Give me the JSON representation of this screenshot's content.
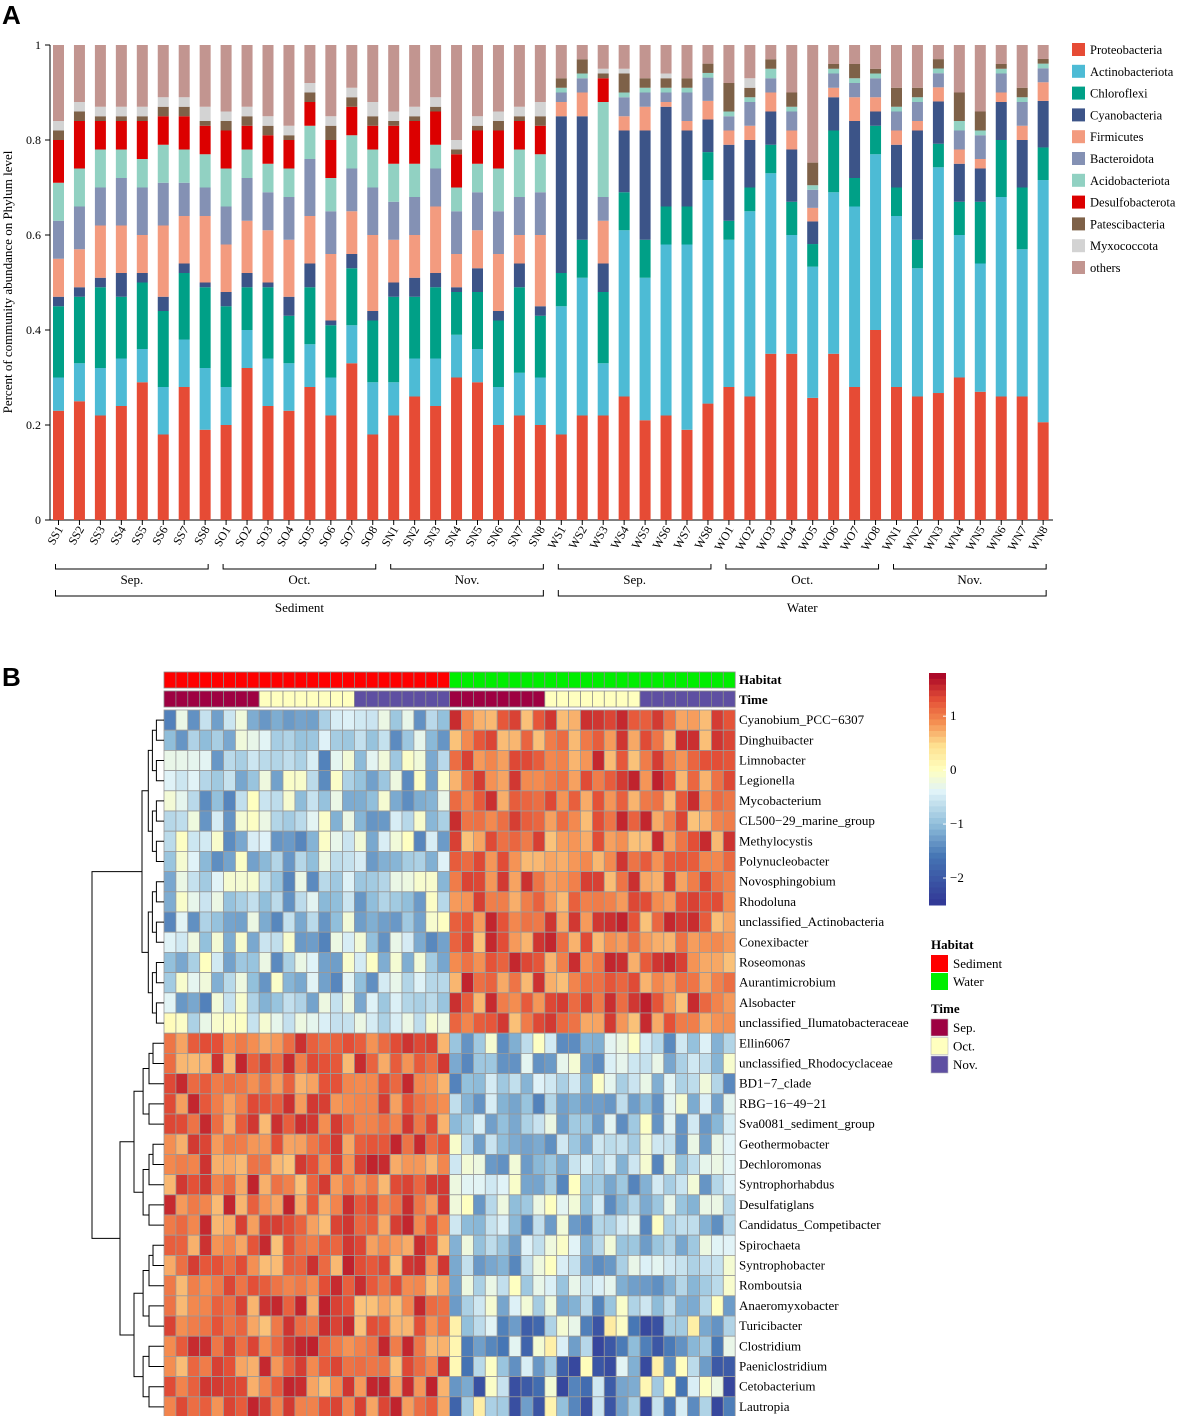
{
  "panel_a_label": "A",
  "panel_b_label": "B",
  "chart_data": [
    {
      "type": "bar",
      "stacked": true,
      "ylabel": "Percent of community abundance on Phylum level",
      "ylim": [
        0,
        1
      ],
      "yticks": [
        "0",
        "0.2",
        "0.4",
        "0.6",
        "0.8",
        "1"
      ],
      "categories": [
        "SS1",
        "SS2",
        "SS3",
        "SS4",
        "SS5",
        "SS6",
        "SS7",
        "SS8",
        "SO1",
        "SO2",
        "SO3",
        "SO4",
        "SO5",
        "SO6",
        "SO7",
        "SO8",
        "SN1",
        "SN2",
        "SN3",
        "SN4",
        "SN5",
        "SN6",
        "SN7",
        "SN8",
        "WS1",
        "WS2",
        "WS3",
        "WS4",
        "WS5",
        "WS6",
        "WS7",
        "WS8",
        "WO1",
        "WO2",
        "WO3",
        "WO4",
        "WO5",
        "WO6",
        "WO7",
        "WO8",
        "WN1",
        "WN2",
        "WN3",
        "WN4",
        "WN5",
        "WN6",
        "WN7",
        "WN8"
      ],
      "groups": [
        {
          "label": "Sep.",
          "from": 0,
          "to": 7
        },
        {
          "label": "Oct.",
          "from": 8,
          "to": 15
        },
        {
          "label": "Nov.",
          "from": 16,
          "to": 23
        },
        {
          "label": "Sep.",
          "from": 24,
          "to": 31
        },
        {
          "label": "Oct.",
          "from": 32,
          "to": 39
        },
        {
          "label": "Nov.",
          "from": 40,
          "to": 47
        }
      ],
      "habitats": [
        {
          "label": "Sediment",
          "from": 0,
          "to": 23
        },
        {
          "label": "Water",
          "from": 24,
          "to": 47
        }
      ],
      "series": [
        {
          "name": "Proteobacteria",
          "color": "#e64b35",
          "values": [
            0.23,
            0.25,
            0.22,
            0.24,
            0.29,
            0.18,
            0.28,
            0.19,
            0.2,
            0.32,
            0.24,
            0.23,
            0.28,
            0.22,
            0.33,
            0.18,
            0.22,
            0.26,
            0.24,
            0.3,
            0.29,
            0.2,
            0.22,
            0.2,
            0.18,
            0.22,
            0.22,
            0.26,
            0.21,
            0.22,
            0.19,
            0.25,
            0.28,
            0.26,
            0.35,
            0.35,
            0.27,
            0.35,
            0.28,
            0.4,
            0.28,
            0.26,
            0.27,
            0.3,
            0.27,
            0.26,
            0.26,
            0.21
          ]
        },
        {
          "name": "Actinobacteriota",
          "color": "#4dbbd5",
          "values": [
            0.07,
            0.08,
            0.1,
            0.1,
            0.07,
            0.1,
            0.1,
            0.13,
            0.08,
            0.08,
            0.1,
            0.1,
            0.09,
            0.08,
            0.08,
            0.11,
            0.07,
            0.08,
            0.1,
            0.09,
            0.07,
            0.08,
            0.09,
            0.1,
            0.27,
            0.29,
            0.11,
            0.35,
            0.3,
            0.36,
            0.39,
            0.48,
            0.31,
            0.39,
            0.38,
            0.25,
            0.29,
            0.34,
            0.38,
            0.37,
            0.36,
            0.27,
            0.48,
            0.3,
            0.27,
            0.42,
            0.31,
            0.52
          ]
        },
        {
          "name": "Chloroflexi",
          "color": "#00a087",
          "values": [
            0.15,
            0.14,
            0.17,
            0.13,
            0.14,
            0.16,
            0.14,
            0.17,
            0.17,
            0.09,
            0.15,
            0.1,
            0.12,
            0.11,
            0.12,
            0.13,
            0.18,
            0.13,
            0.15,
            0.09,
            0.12,
            0.14,
            0.18,
            0.13,
            0.07,
            0.08,
            0.15,
            0.08,
            0.08,
            0.08,
            0.08,
            0.06,
            0.04,
            0.05,
            0.06,
            0.07,
            0.05,
            0.13,
            0.06,
            0.06,
            0.06,
            0.06,
            0.05,
            0.07,
            0.13,
            0.12,
            0.13,
            0.07
          ]
        },
        {
          "name": "Cyanobacteria",
          "color": "#3c5488",
          "values": [
            0.02,
            0.02,
            0.02,
            0.05,
            0.02,
            0.03,
            0.02,
            0.01,
            0.03,
            0.03,
            0.01,
            0.04,
            0.05,
            0.01,
            0.03,
            0.02,
            0.03,
            0.04,
            0.03,
            0.01,
            0.05,
            0.02,
            0.05,
            0.02,
            0.33,
            0.26,
            0.06,
            0.13,
            0.23,
            0.21,
            0.16,
            0.07,
            0.16,
            0.1,
            0.07,
            0.11,
            0.05,
            0.07,
            0.12,
            0.03,
            0.09,
            0.23,
            0.09,
            0.08,
            0.07,
            0.08,
            0.1,
            0.1
          ]
        },
        {
          "name": "Firmicutes",
          "color": "#f39b7f",
          "values": [
            0.08,
            0.08,
            0.11,
            0.1,
            0.08,
            0.15,
            0.1,
            0.14,
            0.1,
            0.11,
            0.11,
            0.12,
            0.1,
            0.14,
            0.09,
            0.16,
            0.09,
            0.09,
            0.14,
            0.07,
            0.08,
            0.12,
            0.06,
            0.15,
            0.03,
            0.05,
            0.09,
            0.03,
            0.05,
            0.01,
            0.02,
            0.04,
            0.03,
            0.03,
            0.04,
            0.04,
            0.03,
            0.02,
            0.05,
            0.03,
            0.03,
            0.02,
            0.03,
            0.03,
            0.02,
            0.02,
            0.03,
            0.04
          ]
        },
        {
          "name": "Bacteroidota",
          "color": "#8491b4",
          "values": [
            0.08,
            0.09,
            0.08,
            0.1,
            0.1,
            0.09,
            0.07,
            0.06,
            0.08,
            0.09,
            0.08,
            0.09,
            0.12,
            0.09,
            0.09,
            0.1,
            0.08,
            0.08,
            0.08,
            0.09,
            0.08,
            0.09,
            0.08,
            0.09,
            0.02,
            0.03,
            0.05,
            0.04,
            0.03,
            0.02,
            0.06,
            0.05,
            0.03,
            0.05,
            0.03,
            0.04,
            0.04,
            0.03,
            0.03,
            0.04,
            0.04,
            0.04,
            0.03,
            0.04,
            0.05,
            0.04,
            0.05,
            0.03
          ]
        },
        {
          "name": "Acidobacteriota",
          "color": "#91d1c2",
          "values": [
            0.08,
            0.08,
            0.08,
            0.06,
            0.06,
            0.08,
            0.07,
            0.07,
            0.08,
            0.06,
            0.06,
            0.06,
            0.07,
            0.07,
            0.07,
            0.08,
            0.08,
            0.07,
            0.05,
            0.05,
            0.06,
            0.09,
            0.1,
            0.08,
            0.01,
            0.01,
            0.2,
            0.01,
            0.01,
            0.01,
            0.01,
            0.01,
            0.01,
            0.01,
            0.02,
            0.01,
            0.01,
            0.01,
            0.01,
            0.01,
            0.01,
            0.01,
            0.01,
            0.02,
            0.01,
            0.01,
            0.01,
            0.01
          ]
        },
        {
          "name": "Desulfobacterota",
          "color": "#dc0000",
          "values": [
            0.09,
            0.1,
            0.06,
            0.06,
            0.08,
            0.06,
            0.07,
            0.06,
            0.08,
            0.05,
            0.06,
            0.06,
            0.05,
            0.08,
            0.06,
            0.05,
            0.08,
            0.09,
            0.07,
            0.07,
            0.07,
            0.08,
            0.06,
            0.06,
            0.0,
            0.0,
            0.05,
            0.0,
            0.0,
            0.0,
            0.0,
            0.0,
            0.0,
            0.0,
            0.0,
            0.0,
            0.0,
            0.0,
            0.0,
            0.0,
            0.0,
            0.0,
            0.0,
            0.0,
            0.0,
            0.0,
            0.0,
            0.0
          ]
        },
        {
          "name": "Patescibacteria",
          "color": "#7e6148",
          "values": [
            0.02,
            0.02,
            0.01,
            0.01,
            0.01,
            0.02,
            0.02,
            0.01,
            0.02,
            0.02,
            0.02,
            0.01,
            0.02,
            0.03,
            0.02,
            0.02,
            0.01,
            0.01,
            0.01,
            0.01,
            0.01,
            0.02,
            0.01,
            0.02,
            0.02,
            0.03,
            0.01,
            0.04,
            0.02,
            0.02,
            0.02,
            0.02,
            0.06,
            0.02,
            0.02,
            0.03,
            0.05,
            0.01,
            0.03,
            0.01,
            0.04,
            0.02,
            0.02,
            0.06,
            0.04,
            0.01,
            0.02,
            0.01
          ]
        },
        {
          "name": "Myxococcota",
          "color": "#d3d3d3",
          "values": [
            0.02,
            0.02,
            0.02,
            0.02,
            0.02,
            0.02,
            0.02,
            0.03,
            0.02,
            0.02,
            0.02,
            0.02,
            0.02,
            0.02,
            0.02,
            0.03,
            0.02,
            0.02,
            0.02,
            0.02,
            0.02,
            0.02,
            0.02,
            0.03,
            0.0,
            0.0,
            0.01,
            0.01,
            0.0,
            0.01,
            0.0,
            0.0,
            0.0,
            0.02,
            0.0,
            0.0,
            0.0,
            0.0,
            0.0,
            0.0,
            0.0,
            0.0,
            0.0,
            0.0,
            0.0,
            0.0,
            0.0,
            0.0
          ]
        },
        {
          "name": "others",
          "color": "#c29590",
          "values": [
            0.16,
            0.12,
            0.13,
            0.13,
            0.13,
            0.11,
            0.11,
            0.13,
            0.14,
            0.13,
            0.15,
            0.17,
            0.08,
            0.15,
            0.09,
            0.12,
            0.14,
            0.13,
            0.11,
            0.2,
            0.15,
            0.14,
            0.13,
            0.12,
            0.07,
            0.03,
            0.05,
            0.05,
            0.07,
            0.06,
            0.07,
            0.04,
            0.08,
            0.07,
            0.03,
            0.1,
            0.26,
            0.04,
            0.04,
            0.05,
            0.09,
            0.09,
            0.03,
            0.1,
            0.14,
            0.04,
            0.09,
            0.03
          ]
        }
      ]
    },
    {
      "type": "heatmap",
      "columns": 48,
      "column_annotations": {
        "Habitat": {
          "title": "Habitat",
          "levels": [
            "Sediment",
            "Water"
          ],
          "colors": [
            "#ff0000",
            "#00ee00"
          ],
          "sizes": [
            24,
            24
          ]
        },
        "Time": {
          "title": "Time",
          "levels": [
            "Sep.",
            "Oct.",
            "Nov."
          ],
          "colors": [
            "#9e0142",
            "#ffffbf",
            "#5e4fa2"
          ],
          "pattern": [
            8,
            8,
            8,
            8,
            8,
            8
          ]
        }
      },
      "color_scale": {
        "min": -2.5,
        "max": 1.8,
        "ticks": [
          "1",
          "0",
          "−1",
          "−2"
        ],
        "tick_values": [
          1,
          0,
          -1,
          -2
        ]
      },
      "rows": [
        "Cyanobium_PCC−6307",
        "Dinghuibacter",
        "Limnobacter",
        "Legionella",
        "Mycobacterium",
        "CL500−29_marine_group",
        "Methylocystis",
        "Polynucleobacter",
        "Novosphingobium",
        "Rhodoluna",
        "unclassified_Actinobacteria",
        "Conexibacter",
        "Roseomonas",
        "Aurantimicrobium",
        "Alsobacter",
        "unclassified_Ilumatobacteraceae",
        "Ellin6067",
        "unclassified_Rhodocyclaceae",
        "BD1−7_clade",
        "RBG−16−49−21",
        "Sva0081_sediment_group",
        "Geothermobacter",
        "Dechloromonas",
        "Syntrophorhabdus",
        "Desulfatiglans",
        "Candidatus_Competibacter",
        "Spirochaeta",
        "Syntrophobacter",
        "Romboutsia",
        "Anaeromyxobacter",
        "Turicibacter",
        "Clostridium",
        "Paeniclostridium",
        "Cetobacterium",
        "Lautropia"
      ],
      "row_cluster_group": [
        "water",
        "water",
        "water",
        "water",
        "water",
        "water",
        "water",
        "water",
        "water",
        "water",
        "water",
        "water",
        "water",
        "water",
        "water",
        "water",
        "sediment",
        "sediment",
        "sediment",
        "sediment",
        "sediment",
        "sediment",
        "sediment",
        "sediment",
        "sediment",
        "sediment",
        "sediment",
        "sediment",
        "sediment",
        "sediment",
        "sediment",
        "sediment",
        "sediment",
        "sediment",
        "sediment"
      ],
      "note": "Row-scaled z-scores; water-associated genera are high (0.5 to 1.8) in Water samples and low (-1.5 to 0) in Sediment samples; sediment-associated genera show the opposite pattern."
    }
  ]
}
